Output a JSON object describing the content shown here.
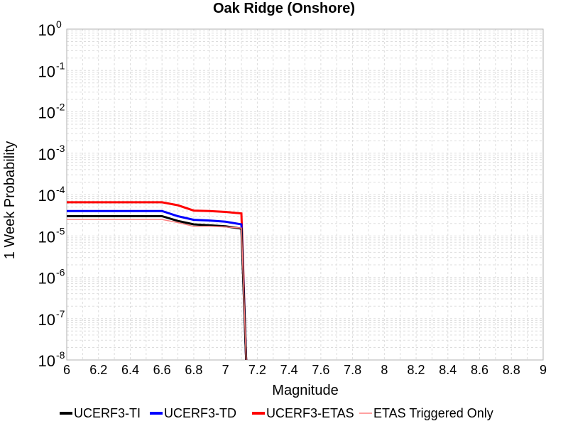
{
  "chart_data": {
    "type": "line",
    "title": "Oak Ridge (Onshore)",
    "xlabel": "Magnitude",
    "ylabel": "1 Week Probability",
    "xlim": [
      6,
      9
    ],
    "ylim": [
      1e-08,
      1
    ],
    "yscale": "log",
    "grid": true,
    "legend_position": "bottom",
    "x_ticks": [
      "6",
      "6.2",
      "6.4",
      "6.6",
      "6.8",
      "7",
      "7.2",
      "7.4",
      "7.6",
      "7.8",
      "8",
      "8.2",
      "8.4",
      "8.6",
      "8.8",
      "9"
    ],
    "y_tick_base": "10",
    "y_tick_exponents": [
      "-8",
      "-7",
      "-6",
      "-5",
      "-4",
      "-3",
      "-2",
      "-1",
      "0"
    ],
    "series": [
      {
        "name": "UCERF3-TI",
        "color": "#000000",
        "x": [
          6.0,
          6.1,
          6.2,
          6.3,
          6.4,
          6.5,
          6.6,
          6.7,
          6.8,
          6.9,
          7.0,
          7.1,
          7.13
        ],
        "y": [
          3e-05,
          3e-05,
          3e-05,
          3e-05,
          3e-05,
          3e-05,
          3e-05,
          2.3e-05,
          1.9e-05,
          1.8e-05,
          1.7e-05,
          1.5e-05,
          1e-08
        ]
      },
      {
        "name": "UCERF3-TD",
        "color": "#0000ff",
        "x": [
          6.0,
          6.1,
          6.2,
          6.3,
          6.4,
          6.5,
          6.6,
          6.7,
          6.8,
          6.9,
          7.0,
          7.1,
          7.13
        ],
        "y": [
          4e-05,
          4e-05,
          4e-05,
          4e-05,
          4e-05,
          4e-05,
          4e-05,
          3e-05,
          2.45e-05,
          2.35e-05,
          2.2e-05,
          1.9e-05,
          1e-08
        ]
      },
      {
        "name": "UCERF3-ETAS",
        "color": "#ff0000",
        "x": [
          6.0,
          6.1,
          6.2,
          6.3,
          6.4,
          6.5,
          6.6,
          6.7,
          6.8,
          6.9,
          7.0,
          7.1,
          7.13
        ],
        "y": [
          6.5e-05,
          6.5e-05,
          6.5e-05,
          6.5e-05,
          6.5e-05,
          6.5e-05,
          6.5e-05,
          5.5e-05,
          4.1e-05,
          4e-05,
          3.8e-05,
          3.5e-05,
          1e-08
        ]
      },
      {
        "name": "ETAS Triggered Only",
        "color": "#ff8080",
        "x": [
          6.0,
          6.1,
          6.2,
          6.3,
          6.4,
          6.5,
          6.6,
          6.7,
          6.8,
          6.9,
          7.0,
          7.1,
          7.13
        ],
        "y": [
          2.5e-05,
          2.5e-05,
          2.5e-05,
          2.5e-05,
          2.5e-05,
          2.5e-05,
          2.5e-05,
          2.1e-05,
          1.7e-05,
          1.7e-05,
          1.65e-05,
          1.55e-05,
          1e-08
        ]
      }
    ]
  }
}
